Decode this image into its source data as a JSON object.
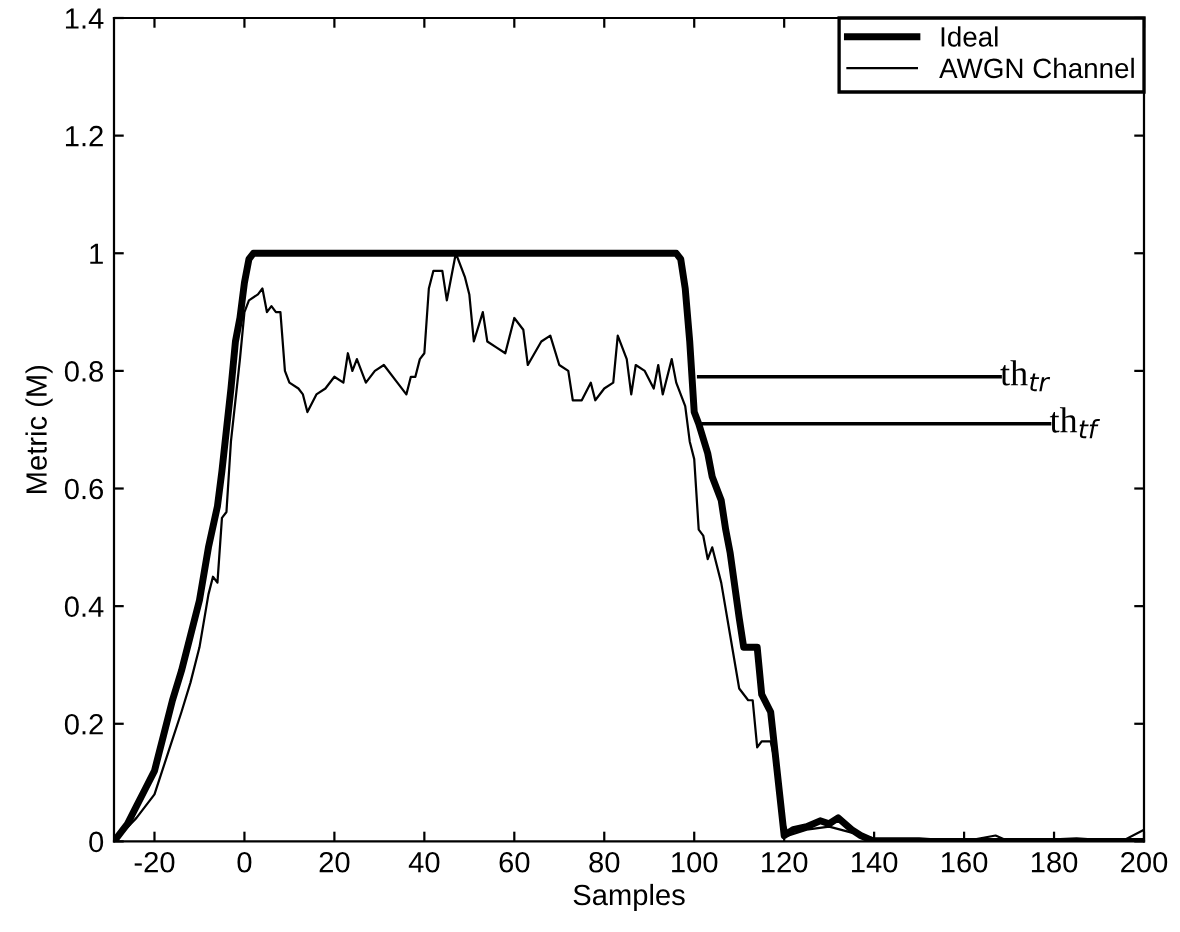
{
  "chart_data": {
    "type": "line",
    "xlabel": "Samples",
    "ylabel": "Metric (M)",
    "xlim": [
      -29,
      200
    ],
    "ylim": [
      0,
      1.4
    ],
    "xticks": [
      -20,
      0,
      20,
      40,
      60,
      80,
      100,
      120,
      140,
      160,
      180,
      200
    ],
    "yticks": [
      0,
      0.2,
      0.4,
      0.6,
      0.8,
      1,
      1.2,
      1.4
    ],
    "grid": false,
    "legend": "top right",
    "line_style": "solid",
    "marker": "none",
    "series": [
      {
        "name": "Ideal",
        "color": "#000000",
        "x": [
          -29,
          -26,
          -24,
          -22,
          -20,
          -18,
          -16,
          -14,
          -12,
          -10,
          -8,
          -6,
          -5,
          -4,
          -3,
          -2,
          -1,
          0,
          1,
          2,
          96,
          97,
          98,
          99,
          100,
          101,
          103,
          104,
          106,
          107,
          108,
          110,
          111,
          114,
          115,
          117,
          118,
          119,
          120,
          122,
          125,
          128,
          130,
          132,
          135,
          137,
          140,
          200
        ],
        "values": [
          0,
          0.03,
          0.06,
          0.09,
          0.12,
          0.18,
          0.24,
          0.29,
          0.35,
          0.41,
          0.5,
          0.57,
          0.63,
          0.7,
          0.77,
          0.85,
          0.89,
          0.95,
          0.99,
          1,
          1,
          0.99,
          0.94,
          0.85,
          0.73,
          0.71,
          0.66,
          0.62,
          0.58,
          0.53,
          0.49,
          0.38,
          0.33,
          0.33,
          0.25,
          0.22,
          0.15,
          0.08,
          0.01,
          0.02,
          0.025,
          0.035,
          0.03,
          0.04,
          0.02,
          0.01,
          0,
          0
        ]
      },
      {
        "name": "AWGN Channel",
        "color": "#000000",
        "x": [
          -29,
          -24,
          -20,
          -17,
          -14,
          -12,
          -10,
          -8,
          -7,
          -6,
          -5,
          -4,
          -3,
          -2,
          -1,
          0,
          1,
          3,
          4,
          5,
          6,
          7,
          8,
          9,
          10,
          12,
          13,
          14,
          16,
          18,
          20,
          22,
          23,
          24,
          25,
          27,
          29,
          31,
          34,
          36,
          37,
          38,
          39,
          40,
          41,
          42,
          44,
          45,
          47,
          49,
          50,
          51,
          53,
          54,
          56,
          58,
          60,
          62,
          63,
          66,
          68,
          70,
          72,
          73,
          75,
          77,
          78,
          80,
          82,
          83,
          85,
          86,
          87,
          89,
          91,
          92,
          93,
          95,
          96,
          98,
          99,
          100,
          101,
          102,
          103,
          104,
          106,
          108,
          110,
          112,
          113,
          114,
          115,
          117,
          119,
          120,
          121,
          125,
          130,
          135,
          140,
          150,
          160,
          167,
          170,
          185,
          195,
          200
        ],
        "values": [
          0,
          0.04,
          0.08,
          0.15,
          0.22,
          0.27,
          0.33,
          0.42,
          0.45,
          0.44,
          0.55,
          0.56,
          0.68,
          0.75,
          0.82,
          0.9,
          0.92,
          0.93,
          0.94,
          0.9,
          0.91,
          0.9,
          0.9,
          0.8,
          0.78,
          0.77,
          0.76,
          0.73,
          0.76,
          0.77,
          0.79,
          0.78,
          0.83,
          0.8,
          0.82,
          0.78,
          0.8,
          0.81,
          0.78,
          0.76,
          0.79,
          0.79,
          0.82,
          0.83,
          0.94,
          0.97,
          0.97,
          0.92,
          1.0,
          0.96,
          0.93,
          0.85,
          0.9,
          0.85,
          0.84,
          0.83,
          0.89,
          0.87,
          0.81,
          0.85,
          0.86,
          0.81,
          0.8,
          0.75,
          0.75,
          0.78,
          0.75,
          0.77,
          0.78,
          0.86,
          0.82,
          0.76,
          0.81,
          0.8,
          0.77,
          0.81,
          0.76,
          0.82,
          0.78,
          0.74,
          0.68,
          0.65,
          0.53,
          0.52,
          0.48,
          0.5,
          0.44,
          0.35,
          0.26,
          0.24,
          0.24,
          0.16,
          0.17,
          0.17,
          0.1,
          0.03,
          0.01,
          0.02,
          0.025,
          0.015,
          0.005,
          0.005,
          0,
          0.01,
          0,
          0.005,
          0,
          0.02
        ]
      },
      {
        "color": "#000000",
        "x": [
          101,
          168
        ],
        "values": [
          0.79,
          0.79
        ]
      },
      {
        "color": "#000000",
        "x": [
          102,
          179
        ],
        "values": [
          0.71,
          0.71
        ]
      }
    ],
    "annotations": [
      {
        "text": "th$_{tr}$",
        "x": 168,
        "y": 0.79
      },
      {
        "text": "th$_{tf}$",
        "x": 179,
        "y": 0.71
      }
    ]
  }
}
